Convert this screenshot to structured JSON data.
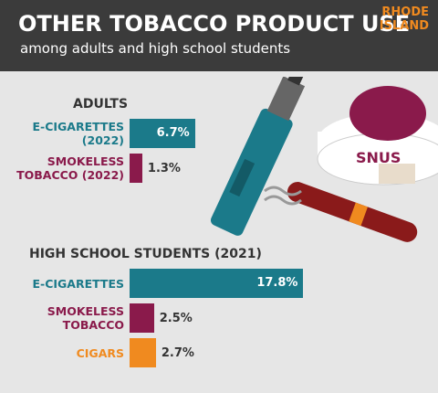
{
  "header": {
    "title": "OTHER TOBACCO PRODUCT USE",
    "subtitle": "among adults and high school students",
    "state": "RHODE ISLAND"
  },
  "illustration": {
    "label": "SNUS"
  },
  "chart_data": [
    {
      "type": "bar",
      "title": "ADULTS",
      "categories": [
        "E-CIGARETTES (2022)",
        "SMOKELESS TOBACCO (2022)"
      ],
      "values": [
        6.7,
        1.3
      ],
      "value_labels": [
        "6.7%",
        "1.3%"
      ],
      "colors": [
        "#1b7a8a",
        "#8a1a4b"
      ]
    },
    {
      "type": "bar",
      "title": "HIGH SCHOOL STUDENTS (2021)",
      "categories": [
        "E-CIGARETTES",
        "SMOKELESS TOBACCO",
        "CIGARS"
      ],
      "values": [
        17.8,
        2.5,
        2.7
      ],
      "value_labels": [
        "17.8%",
        "2.5%",
        "2.7%"
      ],
      "colors": [
        "#1b7a8a",
        "#8a1a4b",
        "#f08a1f"
      ]
    }
  ]
}
